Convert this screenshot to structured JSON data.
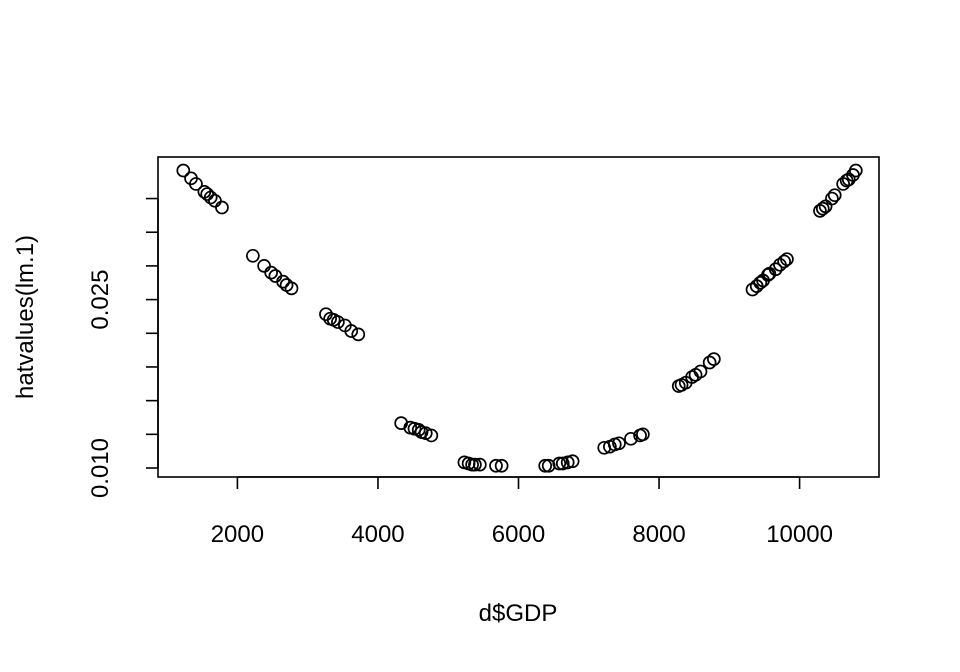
{
  "chart_data": {
    "type": "scatter",
    "title": "",
    "xlabel": "d$GDP",
    "ylabel": "hatvalues(lm.1)",
    "xlim": [
      870,
      11130
    ],
    "ylim": [
      0.0092,
      0.0377
    ],
    "x_ticks": [
      2000,
      4000,
      6000,
      8000,
      10000
    ],
    "x_tick_labels": [
      "2000",
      "4000",
      "6000",
      "8000",
      "10000"
    ],
    "y_ticks": [
      0.01,
      0.013,
      0.016,
      0.019,
      0.022,
      0.025,
      0.028,
      0.031,
      0.034
    ],
    "y_tick_labels": [
      "0.010",
      "",
      "",
      "",
      "",
      "0.025",
      "",
      "",
      ""
    ],
    "grid": false,
    "legend": "none",
    "marker": "open-circle",
    "color": "#000000",
    "points": [
      [
        1230,
        0.0365
      ],
      [
        1340,
        0.0358
      ],
      [
        1410,
        0.0353
      ],
      [
        1530,
        0.0346
      ],
      [
        1570,
        0.0344
      ],
      [
        1620,
        0.0341
      ],
      [
        1680,
        0.0338
      ],
      [
        1780,
        0.0332
      ],
      [
        2220,
        0.0289
      ],
      [
        2380,
        0.028
      ],
      [
        2480,
        0.0274
      ],
      [
        2540,
        0.0271
      ],
      [
        2650,
        0.0266
      ],
      [
        2700,
        0.0263
      ],
      [
        2770,
        0.026
      ],
      [
        3260,
        0.0237
      ],
      [
        3320,
        0.0233
      ],
      [
        3370,
        0.0232
      ],
      [
        3430,
        0.023
      ],
      [
        3530,
        0.0227
      ],
      [
        3620,
        0.0222
      ],
      [
        3720,
        0.0219
      ],
      [
        4330,
        0.014
      ],
      [
        4460,
        0.0136
      ],
      [
        4520,
        0.0135
      ],
      [
        4580,
        0.0134
      ],
      [
        4620,
        0.0132
      ],
      [
        4680,
        0.0131
      ],
      [
        4760,
        0.0129
      ],
      [
        5230,
        0.0105
      ],
      [
        5290,
        0.0104
      ],
      [
        5340,
        0.0103
      ],
      [
        5380,
        0.0103
      ],
      [
        5450,
        0.0103
      ],
      [
        5680,
        0.0102
      ],
      [
        5760,
        0.0102
      ],
      [
        6380,
        0.0102
      ],
      [
        6430,
        0.0102
      ],
      [
        6580,
        0.0104
      ],
      [
        6630,
        0.0104
      ],
      [
        6700,
        0.0105
      ],
      [
        6770,
        0.0106
      ],
      [
        7220,
        0.0118
      ],
      [
        7300,
        0.0119
      ],
      [
        7370,
        0.0121
      ],
      [
        7430,
        0.0122
      ],
      [
        7600,
        0.0126
      ],
      [
        7730,
        0.0129
      ],
      [
        7770,
        0.013
      ],
      [
        8280,
        0.0173
      ],
      [
        8320,
        0.0174
      ],
      [
        8380,
        0.0176
      ],
      [
        8470,
        0.0181
      ],
      [
        8520,
        0.0183
      ],
      [
        8590,
        0.0186
      ],
      [
        8720,
        0.0194
      ],
      [
        8780,
        0.0197
      ],
      [
        9330,
        0.0259
      ],
      [
        9390,
        0.0262
      ],
      [
        9440,
        0.0265
      ],
      [
        9480,
        0.0267
      ],
      [
        9550,
        0.0272
      ],
      [
        9570,
        0.0273
      ],
      [
        9660,
        0.0277
      ],
      [
        9720,
        0.0281
      ],
      [
        9780,
        0.0284
      ],
      [
        9820,
        0.0286
      ],
      [
        10290,
        0.0329
      ],
      [
        10330,
        0.0331
      ],
      [
        10370,
        0.0333
      ],
      [
        10460,
        0.034
      ],
      [
        10500,
        0.0343
      ],
      [
        10620,
        0.0353
      ],
      [
        10670,
        0.0356
      ],
      [
        10700,
        0.0357
      ],
      [
        10760,
        0.0361
      ],
      [
        10800,
        0.0365
      ]
    ]
  }
}
